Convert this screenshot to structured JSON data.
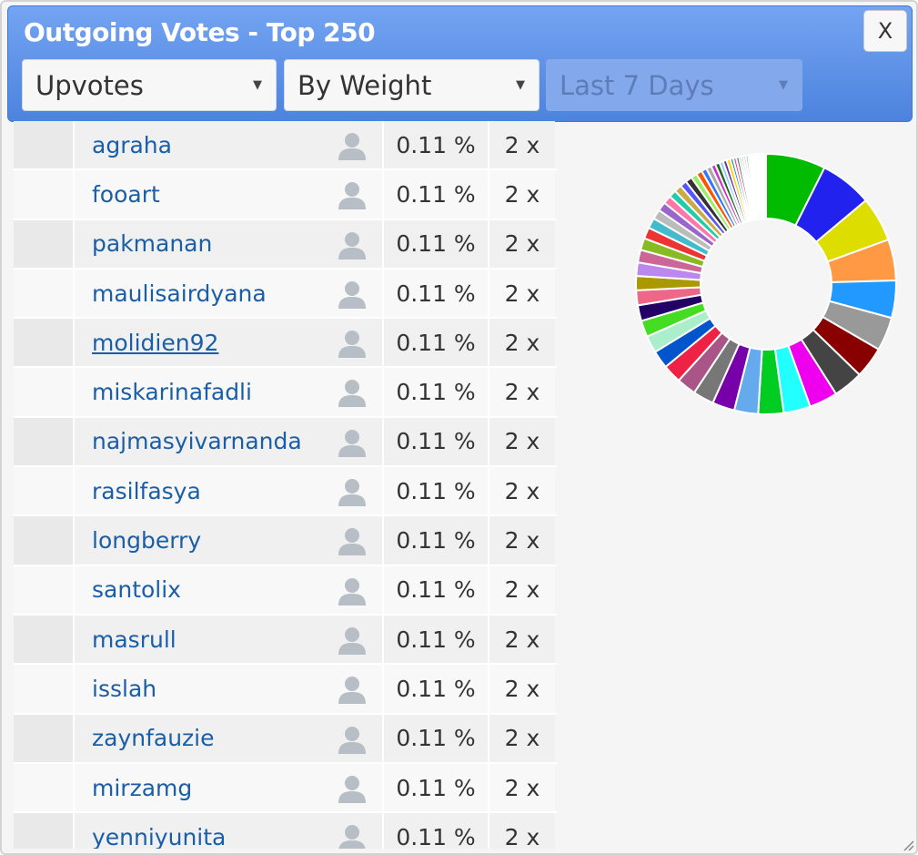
{
  "dialog": {
    "title": "Outgoing Votes - Top 250",
    "close_label": "X"
  },
  "filters": {
    "type": "Upvotes",
    "sort": "By Weight",
    "period": "Last 7 Days",
    "caret": "▼"
  },
  "rows": [
    {
      "name": "agraha",
      "percent": "0.11 %",
      "count": "2 x"
    },
    {
      "name": "fooart",
      "percent": "0.11 %",
      "count": "2 x"
    },
    {
      "name": "pakmanan",
      "percent": "0.11 %",
      "count": "2 x"
    },
    {
      "name": "maulisairdyana",
      "percent": "0.11 %",
      "count": "2 x"
    },
    {
      "name": "molidien92",
      "percent": "0.11 %",
      "count": "2 x"
    },
    {
      "name": "miskarinafadli",
      "percent": "0.11 %",
      "count": "2 x"
    },
    {
      "name": "najmasyivarnanda",
      "percent": "0.11 %",
      "count": "2 x"
    },
    {
      "name": "rasilfasya",
      "percent": "0.11 %",
      "count": "2 x"
    },
    {
      "name": "longberry",
      "percent": "0.11 %",
      "count": "2 x"
    },
    {
      "name": "santolix",
      "percent": "0.11 %",
      "count": "2 x"
    },
    {
      "name": "masrull",
      "percent": "0.11 %",
      "count": "2 x"
    },
    {
      "name": "isslah",
      "percent": "0.11 %",
      "count": "2 x"
    },
    {
      "name": "zaynfauzie",
      "percent": "0.11 %",
      "count": "2 x"
    },
    {
      "name": "mirzamg",
      "percent": "0.11 %",
      "count": "2 x"
    },
    {
      "name": "yenniyunita",
      "percent": "0.11 %",
      "count": "2 x"
    }
  ],
  "icons": {
    "row_user": "user-icon",
    "close": "close-icon",
    "resize": "resize-handle-icon"
  },
  "colors": {
    "accent": "#5b8ee6",
    "link": "#1a5ea8"
  },
  "chart_data": {
    "type": "pie",
    "style": "donut",
    "legend": "none",
    "values": [
      8,
      7,
      6,
      5.5,
      5,
      4.5,
      4.2,
      4,
      3.8,
      3.6,
      3.4,
      3.2,
      3,
      2.8,
      2.6,
      2.5,
      2.4,
      2.3,
      2.2,
      2.1,
      2,
      1.9,
      1.8,
      1.7,
      1.6,
      1.5,
      1.4,
      1.3,
      1.2,
      1.1,
      1,
      1,
      0.9,
      0.9,
      0.8,
      0.8,
      0.7,
      0.7,
      0.6,
      0.6,
      0.5,
      0.5,
      0.5,
      0.4,
      0.4,
      0.4,
      0.3,
      0.3,
      0.3,
      0.3,
      0.2,
      0.2,
      0.2,
      0.2,
      0.2,
      0.2,
      0.2,
      0.2,
      0.1,
      0.1,
      0.1,
      0.1,
      0.1,
      0.1,
      0.1,
      0.1
    ],
    "colors": [
      "#00bb00",
      "#2222ee",
      "#dddd00",
      "#ff9944",
      "#2299ff",
      "#999999",
      "#880000",
      "#444444",
      "#ee00ee",
      "#22ffff",
      "#00cc22",
      "#66aaee",
      "#7700aa",
      "#777777",
      "#aa5588",
      "#ee2244",
      "#0055cc",
      "#aaeecc",
      "#44dd22",
      "#220066",
      "#ee6688",
      "#aa9900",
      "#bb88ee",
      "#cc6699",
      "#88bb22",
      "#ee3333",
      "#44bbcc",
      "#bbbbbb",
      "#9966cc",
      "#ff77aa",
      "#22ccaa",
      "#ccaa44",
      "#5555ff",
      "#333333",
      "#99ee66",
      "#ff5500",
      "#3377ff",
      "#aaaaaa",
      "#cc33cc",
      "#226622",
      "#88ccff",
      "#663399",
      "#ffcc00",
      "#009999",
      "#ff3399",
      "#666666",
      "#33cc33",
      "#9999ff",
      "#cc9966",
      "#00aa55",
      "#ee8800",
      "#5588aa",
      "#bb2222",
      "#77dd99",
      "#4444aa",
      "#dd66dd",
      "#889900",
      "#22aaee",
      "#cc7744",
      "#7777cc",
      "#aadd00",
      "#ee4477",
      "#339999",
      "#bb99bb",
      "#55ff55",
      "#997755"
    ]
  }
}
